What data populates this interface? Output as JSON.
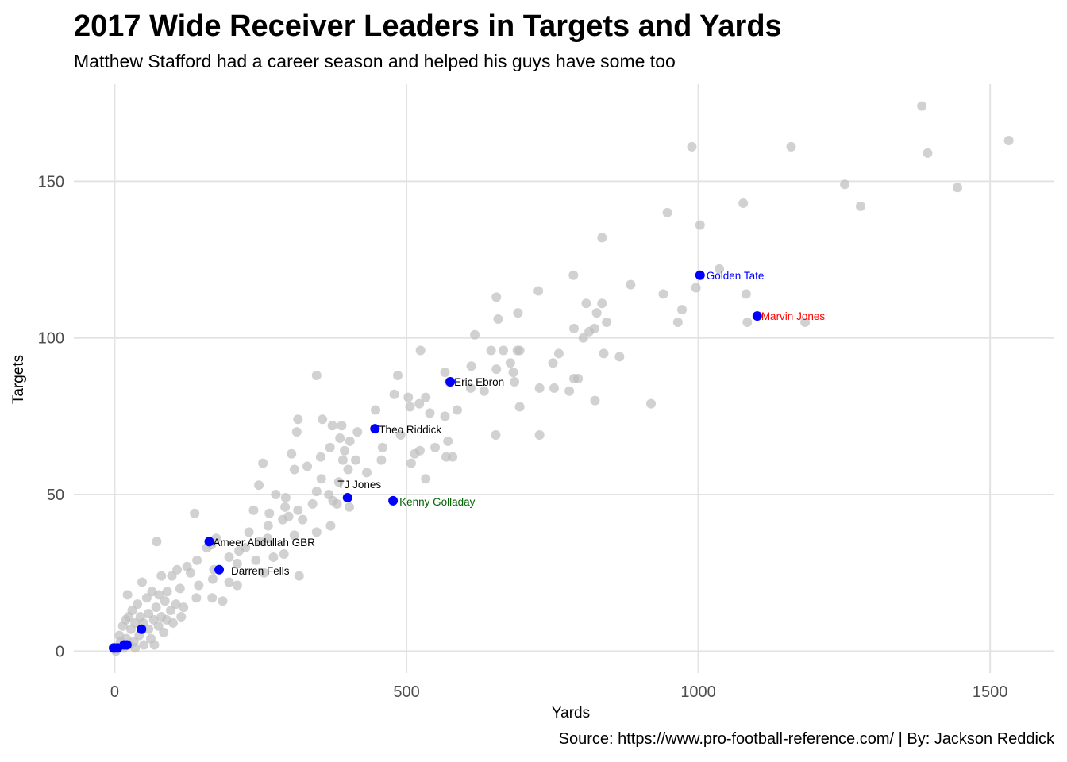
{
  "chart_data": {
    "type": "scatter",
    "title": "2017 Wide Receiver Leaders in Targets and Yards",
    "subtitle": "Matthew Stafford had a career season and helped his guys have some too",
    "caption": "Source: https://www.pro-football-reference.com/ | By: Jackson Reddick",
    "xlabel": "Yards",
    "ylabel": "Targets",
    "xlim": [
      -70,
      1610
    ],
    "ylim": [
      -7,
      181
    ],
    "xticks": [
      0,
      500,
      1000,
      1500
    ],
    "yticks": [
      0,
      50,
      100,
      150
    ],
    "grid": true,
    "colors": {
      "other": "#bebebe",
      "highlight": "#0000ff",
      "grid": "#e3e3e3"
    },
    "series": [
      {
        "points": [
          [
            1383,
            174
          ],
          [
            1532,
            163
          ],
          [
            989,
            161
          ],
          [
            1159,
            161
          ],
          [
            1393,
            159
          ],
          [
            1251,
            149
          ],
          [
            1444,
            148
          ],
          [
            1278,
            142
          ],
          [
            1077,
            143
          ],
          [
            947,
            140
          ],
          [
            1003,
            136
          ],
          [
            835,
            132
          ],
          [
            1036,
            122
          ],
          [
            786,
            120
          ],
          [
            996,
            116
          ],
          [
            884,
            117
          ],
          [
            726,
            115
          ],
          [
            654,
            113
          ],
          [
            940,
            114
          ],
          [
            1082,
            114
          ],
          [
            808,
            111
          ],
          [
            835,
            111
          ],
          [
            826,
            108
          ],
          [
            972,
            109
          ],
          [
            691,
            108
          ],
          [
            1084,
            105
          ],
          [
            1183,
            105
          ],
          [
            965,
            105
          ],
          [
            843,
            105
          ],
          [
            822,
            103
          ],
          [
            657,
            106
          ],
          [
            787,
            103
          ],
          [
            813,
            102
          ],
          [
            803,
            100
          ],
          [
            617,
            101
          ],
          [
            524,
            96
          ],
          [
            666,
            96
          ],
          [
            690,
            96
          ],
          [
            694,
            96
          ],
          [
            645,
            96
          ],
          [
            838,
            95
          ],
          [
            761,
            95
          ],
          [
            865,
            94
          ],
          [
            678,
            92
          ],
          [
            611,
            91
          ],
          [
            751,
            92
          ],
          [
            566,
            89
          ],
          [
            683,
            89
          ],
          [
            654,
            90
          ],
          [
            346,
            88
          ],
          [
            485,
            88
          ],
          [
            794,
            87
          ],
          [
            787,
            87
          ],
          [
            573,
            86
          ],
          [
            685,
            86
          ],
          [
            753,
            84
          ],
          [
            728,
            84
          ],
          [
            610,
            84
          ],
          [
            779,
            83
          ],
          [
            633,
            83
          ],
          [
            479,
            82
          ],
          [
            503,
            81
          ],
          [
            533,
            81
          ],
          [
            823,
            80
          ],
          [
            522,
            79
          ],
          [
            694,
            78
          ],
          [
            919,
            79
          ],
          [
            506,
            78
          ],
          [
            587,
            77
          ],
          [
            540,
            76
          ],
          [
            447,
            77
          ],
          [
            566,
            75
          ],
          [
            373,
            72
          ],
          [
            389,
            72
          ],
          [
            314,
            74
          ],
          [
            356,
            74
          ],
          [
            312,
            70
          ],
          [
            416,
            70
          ],
          [
            490,
            69
          ],
          [
            653,
            69
          ],
          [
            728,
            69
          ],
          [
            386,
            68
          ],
          [
            403,
            67
          ],
          [
            571,
            67
          ],
          [
            369,
            65
          ],
          [
            459,
            65
          ],
          [
            394,
            64
          ],
          [
            523,
            64
          ],
          [
            303,
            63
          ],
          [
            549,
            65
          ],
          [
            514,
            63
          ],
          [
            353,
            62
          ],
          [
            579,
            62
          ],
          [
            457,
            61
          ],
          [
            568,
            62
          ],
          [
            413,
            61
          ],
          [
            391,
            61
          ],
          [
            508,
            60
          ],
          [
            254,
            60
          ],
          [
            330,
            59
          ],
          [
            308,
            58
          ],
          [
            400,
            58
          ],
          [
            432,
            57
          ],
          [
            533,
            55
          ],
          [
            354,
            55
          ],
          [
            384,
            54
          ],
          [
            247,
            53
          ],
          [
            346,
            51
          ],
          [
            276,
            50
          ],
          [
            367,
            50
          ],
          [
            293,
            49
          ],
          [
            374,
            48
          ],
          [
            339,
            47
          ],
          [
            381,
            47
          ],
          [
            402,
            46
          ],
          [
            292,
            46
          ],
          [
            238,
            45
          ],
          [
            314,
            45
          ],
          [
            265,
            44
          ],
          [
            137,
            44
          ],
          [
            298,
            43
          ],
          [
            288,
            42
          ],
          [
            322,
            42
          ],
          [
            370,
            40
          ],
          [
            263,
            40
          ],
          [
            230,
            38
          ],
          [
            346,
            38
          ],
          [
            308,
            37
          ],
          [
            174,
            36
          ],
          [
            262,
            36
          ],
          [
            248,
            35
          ],
          [
            166,
            34
          ],
          [
            72,
            35
          ],
          [
            224,
            33
          ],
          [
            158,
            33
          ],
          [
            213,
            32
          ],
          [
            290,
            31
          ],
          [
            196,
            30
          ],
          [
            272,
            30
          ],
          [
            141,
            29
          ],
          [
            242,
            29
          ],
          [
            210,
            28
          ],
          [
            170,
            26
          ],
          [
            316,
            24
          ],
          [
            124,
            27
          ],
          [
            256,
            25
          ],
          [
            107,
            26
          ],
          [
            80,
            24
          ],
          [
            130,
            25
          ],
          [
            98,
            24
          ],
          [
            168,
            23
          ],
          [
            196,
            22
          ],
          [
            210,
            21
          ],
          [
            47,
            22
          ],
          [
            144,
            21
          ],
          [
            112,
            20
          ],
          [
            90,
            19
          ],
          [
            64,
            19
          ],
          [
            76,
            18
          ],
          [
            167,
            17
          ],
          [
            185,
            16
          ],
          [
            22,
            18
          ],
          [
            140,
            17
          ],
          [
            55,
            17
          ],
          [
            86,
            16
          ],
          [
            105,
            15
          ],
          [
            118,
            14
          ],
          [
            39,
            15
          ],
          [
            71,
            14
          ],
          [
            96,
            13
          ],
          [
            30,
            13
          ],
          [
            58,
            12
          ],
          [
            80,
            11
          ],
          [
            24,
            11
          ],
          [
            44,
            11
          ],
          [
            114,
            11
          ],
          [
            89,
            10
          ],
          [
            19,
            10
          ],
          [
            67,
            10
          ],
          [
            49,
            9
          ],
          [
            35,
            9
          ],
          [
            100,
            9
          ],
          [
            14,
            8
          ],
          [
            75,
            8
          ],
          [
            58,
            7
          ],
          [
            28,
            7
          ],
          [
            84,
            6
          ],
          [
            8,
            5
          ],
          [
            42,
            5
          ],
          [
            20,
            4
          ],
          [
            62,
            4
          ],
          [
            33,
            3
          ],
          [
            10,
            3
          ],
          [
            50,
            2
          ],
          [
            25,
            2
          ],
          [
            4,
            1
          ],
          [
            15,
            1
          ],
          [
            35,
            1
          ],
          [
            68,
            2
          ],
          [
            2,
            0
          ]
        ]
      },
      {
        "points": [
          {
            "x": 1003,
            "y": 120,
            "label": "Golden Tate",
            "color": "#0000ff"
          },
          {
            "x": 1101,
            "y": 107,
            "label": "Marvin Jones",
            "color": "#ff0000"
          },
          {
            "x": 575,
            "y": 86,
            "label": "Eric Ebron",
            "color": "#000000"
          },
          {
            "x": 446,
            "y": 71,
            "label": "Theo Riddick",
            "color": "#000000"
          },
          {
            "x": 399,
            "y": 49,
            "label": "TJ Jones",
            "color": "#000000"
          },
          {
            "x": 477,
            "y": 48,
            "label": "Kenny Golladay",
            "color": "#006400"
          },
          {
            "x": 162,
            "y": 35,
            "label": "Ameer Abdullah GBR",
            "color": "#000000"
          },
          {
            "x": 179,
            "y": 26,
            "label": "Darren Fells",
            "color": "#000000"
          },
          {
            "x": 46,
            "y": 7
          },
          {
            "x": 16,
            "y": 2
          },
          {
            "x": 21,
            "y": 2
          },
          {
            "x": 0,
            "y": 1
          },
          {
            "x": 5,
            "y": 1
          },
          {
            "x": -2,
            "y": 1
          }
        ]
      }
    ]
  }
}
